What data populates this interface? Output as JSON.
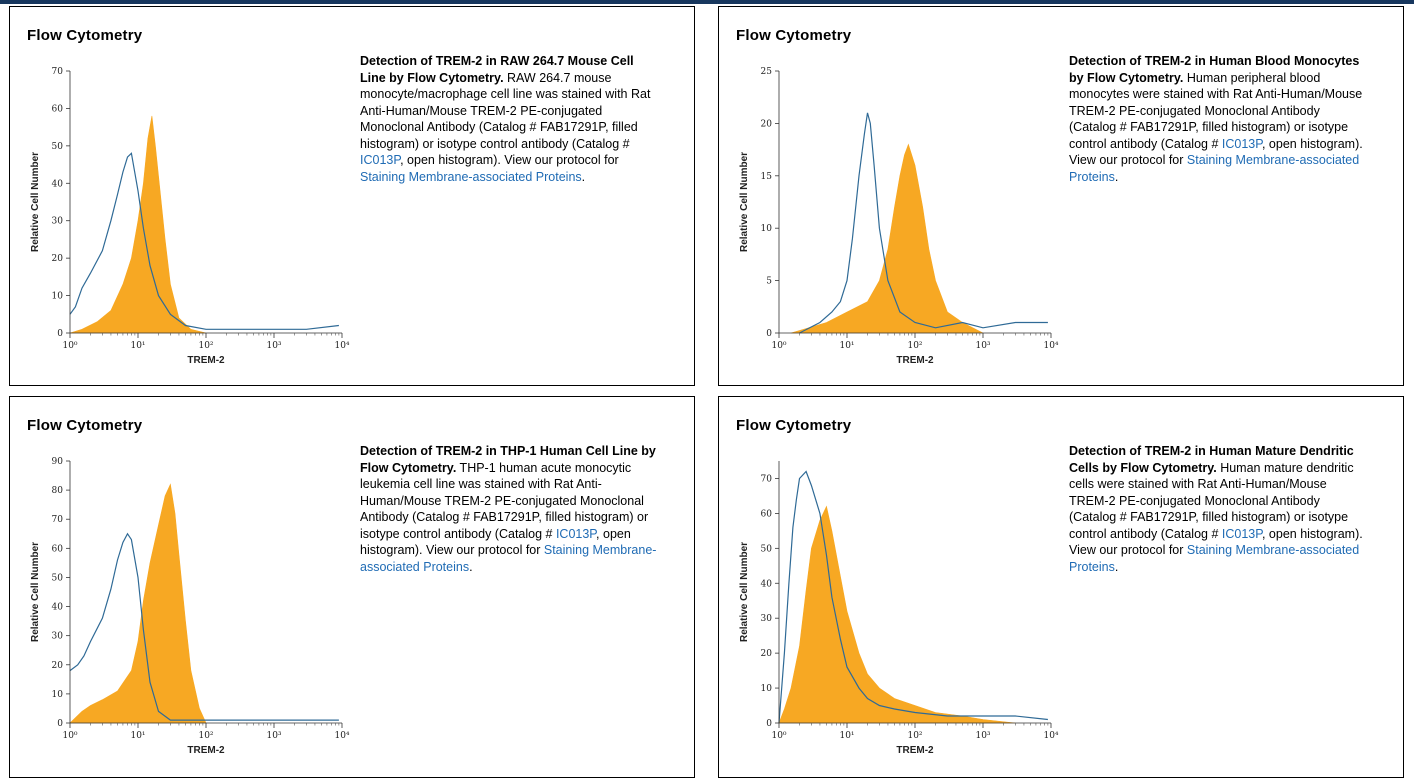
{
  "panels": [
    {
      "title": "Flow Cytometry",
      "caption": {
        "bold": "Detection of TREM-2 in RAW 264.7 Mouse Cell Line by Flow Cytometry.",
        "text": " RAW 264.7 mouse monocyte/macrophage cell line was stained with Rat Anti-Human/Mouse TREM-2 PE-conjugated Monoclonal Antibody (Catalog # FAB17291P, filled histogram) or isotype control antibody (Catalog # ",
        "link1": "IC013P",
        "text2": ", open histogram). View our protocol for ",
        "link2": "Staining Membrane-associated Proteins",
        "end": "."
      }
    },
    {
      "title": "Flow Cytometry",
      "caption": {
        "bold": "Detection of TREM-2 in Human Blood Monocytes by Flow Cytometry.",
        "text": " Human peripheral blood monocytes were stained with Rat Anti-Human/Mouse TREM-2 PE-conjugated Monoclonal Antibody (Catalog # FAB17291P, filled histogram) or isotype control antibody (Catalog # ",
        "link1": "IC013P",
        "text2": ", open histogram). View our protocol for ",
        "link2": "Staining Membrane-associated Proteins",
        "end": "."
      }
    },
    {
      "title": "Flow Cytometry",
      "caption": {
        "bold": "Detection of TREM-2 in THP-1 Human Cell Line by Flow Cytometry.",
        "text": " THP-1 human acute monocytic leukemia cell line was stained with Rat Anti-Human/Mouse TREM-2 PE-conjugated Monoclonal Antibody (Catalog # FAB17291P, filled histogram) or isotype control antibody (Catalog # ",
        "link1": "IC013P",
        "text2": ", open histogram). View our protocol for ",
        "link2": "Staining Membrane-associated Proteins",
        "end": "."
      }
    },
    {
      "title": "Flow Cytometry",
      "caption": {
        "bold": "Detection of TREM-2 in Human Mature Dendritic Cells by Flow Cytometry.",
        "text": " Human mature dendritic cells were stained with Rat Anti-Human/Mouse TREM-2 PE-conjugated Monoclonal Antibody (Catalog # FAB17291P, filled histogram) or isotype control antibody (Catalog # ",
        "link1": "IC013P",
        "text2": ", open histogram). View our protocol for ",
        "link2": "Staining Membrane-associated Proteins",
        "end": "."
      }
    }
  ],
  "colors": {
    "filled": "#f7a823",
    "open": "#2f6a96",
    "link": "#1f6bb4",
    "topbar": "#17375e"
  },
  "chart_data": [
    {
      "type": "area",
      "xlabel": "TREM-2",
      "ylabel": "Relative Cell Number",
      "x_scale": "log",
      "xlim": [
        1,
        10000
      ],
      "ylim": [
        0,
        70
      ],
      "x_ticks": [
        "10⁰",
        "10¹",
        "10²",
        "10³",
        "10⁴"
      ],
      "y_ticks": [
        0,
        10,
        20,
        30,
        40,
        50,
        60,
        70
      ],
      "series": [
        {
          "style": "filled",
          "x": [
            1,
            1.5,
            2.5,
            4,
            6,
            8,
            10,
            12,
            14,
            16,
            18,
            20,
            25,
            30,
            40,
            60,
            100
          ],
          "y": [
            0,
            1,
            3,
            6,
            13,
            20,
            30,
            40,
            52,
            58,
            50,
            42,
            25,
            13,
            4,
            1,
            0
          ]
        },
        {
          "style": "open",
          "x": [
            1,
            1.2,
            1.5,
            2,
            3,
            4,
            5,
            6,
            7,
            8,
            10,
            12,
            15,
            20,
            30,
            50,
            100,
            300,
            1000,
            3000,
            9000
          ],
          "y": [
            5,
            7,
            12,
            16,
            22,
            30,
            37,
            43,
            47,
            48,
            38,
            28,
            18,
            10,
            5,
            2,
            1,
            1,
            1,
            1,
            2
          ]
        }
      ]
    },
    {
      "type": "area",
      "xlabel": "TREM-2",
      "ylabel": "Relative Cell Number",
      "x_scale": "log",
      "xlim": [
        1,
        10000
      ],
      "ylim": [
        0,
        25
      ],
      "x_ticks": [
        "10⁰",
        "10¹",
        "10²",
        "10³",
        "10⁴"
      ],
      "y_ticks": [
        0,
        5,
        10,
        15,
        20,
        25
      ],
      "series": [
        {
          "style": "filled",
          "x": [
            1.5,
            5,
            10,
            20,
            30,
            40,
            50,
            60,
            70,
            80,
            100,
            130,
            160,
            200,
            300,
            500,
            1000
          ],
          "y": [
            0,
            1,
            2,
            3,
            5,
            8,
            12,
            15,
            17,
            18,
            16,
            12,
            8,
            5,
            2,
            1,
            0
          ]
        },
        {
          "style": "open",
          "x": [
            2,
            4,
            6,
            8,
            10,
            12,
            15,
            18,
            20,
            22,
            25,
            30,
            40,
            60,
            100,
            200,
            500,
            1000,
            3000,
            9000
          ],
          "y": [
            0,
            1,
            2,
            3,
            5,
            9,
            15,
            19,
            21,
            20,
            16,
            10,
            5,
            2,
            1,
            0.5,
            1,
            0.5,
            1,
            1
          ]
        }
      ]
    },
    {
      "type": "area",
      "xlabel": "TREM-2",
      "ylabel": "Relative Cell Number",
      "x_scale": "log",
      "xlim": [
        1,
        10000
      ],
      "ylim": [
        0,
        90
      ],
      "x_ticks": [
        "10⁰",
        "10¹",
        "10²",
        "10³",
        "10⁴"
      ],
      "y_ticks": [
        0,
        10,
        20,
        30,
        40,
        50,
        60,
        70,
        80,
        90
      ],
      "series": [
        {
          "style": "filled",
          "x": [
            1,
            1.5,
            2,
            3,
            5,
            8,
            10,
            12,
            15,
            20,
            25,
            30,
            35,
            40,
            50,
            60,
            80,
            100
          ],
          "y": [
            0,
            4,
            6,
            8,
            11,
            18,
            28,
            42,
            55,
            68,
            78,
            82,
            72,
            58,
            35,
            18,
            5,
            0
          ]
        },
        {
          "style": "open",
          "x": [
            1,
            1.3,
            1.6,
            2,
            3,
            4,
            5,
            6,
            7,
            8,
            10,
            12,
            15,
            20,
            30,
            50,
            100,
            300,
            1000,
            9000
          ],
          "y": [
            18,
            20,
            23,
            28,
            36,
            46,
            56,
            62,
            65,
            63,
            50,
            32,
            14,
            4,
            1,
            1,
            1,
            1,
            1,
            1
          ]
        }
      ]
    },
    {
      "type": "area",
      "xlabel": "TREM-2",
      "ylabel": "Relative Cell Number",
      "x_scale": "log",
      "xlim": [
        1,
        10000
      ],
      "ylim": [
        0,
        75
      ],
      "x_ticks": [
        "10⁰",
        "10¹",
        "10²",
        "10³",
        "10⁴"
      ],
      "y_ticks": [
        0,
        10,
        20,
        30,
        40,
        50,
        60,
        70
      ],
      "series": [
        {
          "style": "filled",
          "x": [
            1,
            1.2,
            1.5,
            2,
            2.5,
            3,
            4,
            5,
            6,
            8,
            10,
            15,
            20,
            30,
            50,
            100,
            200,
            500,
            1000,
            3000
          ],
          "y": [
            0,
            4,
            10,
            22,
            38,
            50,
            58,
            62,
            55,
            42,
            32,
            20,
            14,
            10,
            7,
            5,
            3,
            2,
            1,
            0
          ]
        },
        {
          "style": "open",
          "x": [
            1,
            1.2,
            1.4,
            1.6,
            1.8,
            2,
            2.5,
            3,
            4,
            5,
            6,
            8,
            10,
            15,
            20,
            30,
            50,
            100,
            300,
            1000,
            3000,
            9000
          ],
          "y": [
            0,
            20,
            40,
            56,
            64,
            70,
            72,
            68,
            60,
            48,
            36,
            24,
            16,
            10,
            7,
            5,
            4,
            3,
            2,
            2,
            2,
            1
          ]
        }
      ]
    }
  ]
}
